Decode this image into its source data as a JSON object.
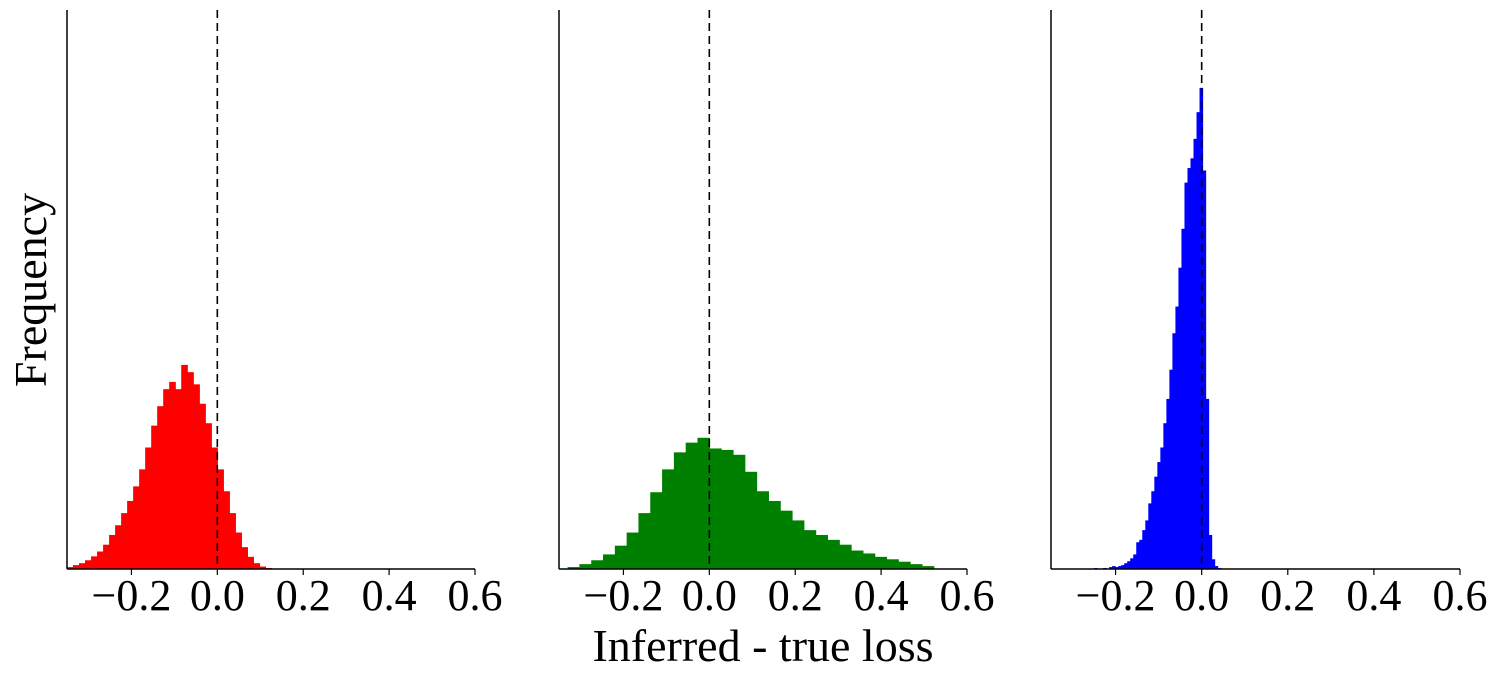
{
  "chart_data": {
    "type": "bar",
    "xlabel": "Inferred - true loss",
    "ylabel": "Frequency",
    "y_ticks_shown": false,
    "reference_line": {
      "x": 0.0,
      "style": "dashed",
      "color": "#000000"
    },
    "panels": [
      {
        "color": "#ff0000",
        "xlim": [
          -0.35,
          0.6
        ],
        "xticks": [
          "−0.2",
          "0.0",
          "0.2",
          "0.4",
          "0.6"
        ],
        "xtick_values": [
          -0.2,
          0.0,
          0.2,
          0.4,
          0.6
        ],
        "bin_edges_start": -0.35,
        "bin_width": 0.014,
        "values": [
          0.4,
          0.8,
          1.2,
          1.8,
          2.6,
          3.6,
          5.0,
          7.0,
          9.0,
          11.5,
          14.0,
          17.0,
          20.5,
          25.0,
          29.5,
          33.5,
          37.0,
          38.5,
          37.0,
          42.0,
          40.5,
          38.0,
          34.0,
          30.0,
          25.0,
          20.5,
          16.0,
          11.5,
          7.5,
          4.5,
          2.5,
          1.2,
          0.5,
          0.2
        ],
        "ylim": [
          0,
          100
        ]
      },
      {
        "color": "#008000",
        "xlim": [
          -0.35,
          0.6
        ],
        "xticks": [
          "−0.2",
          "0.0",
          "0.2",
          "0.4",
          "0.6"
        ],
        "xtick_values": [
          -0.2,
          0.0,
          0.2,
          0.4,
          0.6
        ],
        "bin_edges_start": -0.33,
        "bin_width": 0.0275,
        "values": [
          0.4,
          1.0,
          1.8,
          3.0,
          4.8,
          7.5,
          11.5,
          15.8,
          20.5,
          24.0,
          26.0,
          27.0,
          24.8,
          24.5,
          23.5,
          20.0,
          16.0,
          14.0,
          12.0,
          10.0,
          8.0,
          7.0,
          6.0,
          5.0,
          3.8,
          3.2,
          2.5,
          2.0,
          1.5,
          1.0,
          0.6
        ],
        "ylim": [
          0,
          100
        ]
      },
      {
        "color": "#0000ff",
        "xlim": [
          -0.35,
          0.6
        ],
        "xticks": [
          "−0.2",
          "0.0",
          "0.2",
          "0.4",
          "0.6"
        ],
        "xtick_values": [
          -0.2,
          0.0,
          0.2,
          0.4,
          0.6
        ],
        "bin_edges_start": -0.25,
        "bin_width": 0.007,
        "values": [
          0.2,
          0,
          0,
          0.2,
          0,
          0.4,
          0.6,
          0.4,
          0.6,
          0.8,
          1.2,
          1.6,
          2.2,
          3.0,
          5.5,
          6.0,
          8.0,
          10.0,
          13.5,
          16.0,
          19.0,
          22.0,
          25.0,
          30.0,
          35.0,
          41.0,
          48.5,
          54.0,
          62.0,
          70.0,
          79.5,
          82.5,
          84.5,
          88.5,
          94.0,
          99.0,
          82.0,
          35.0,
          7.0,
          2.0,
          0.6,
          0.2
        ],
        "ylim": [
          0,
          100
        ]
      }
    ]
  }
}
